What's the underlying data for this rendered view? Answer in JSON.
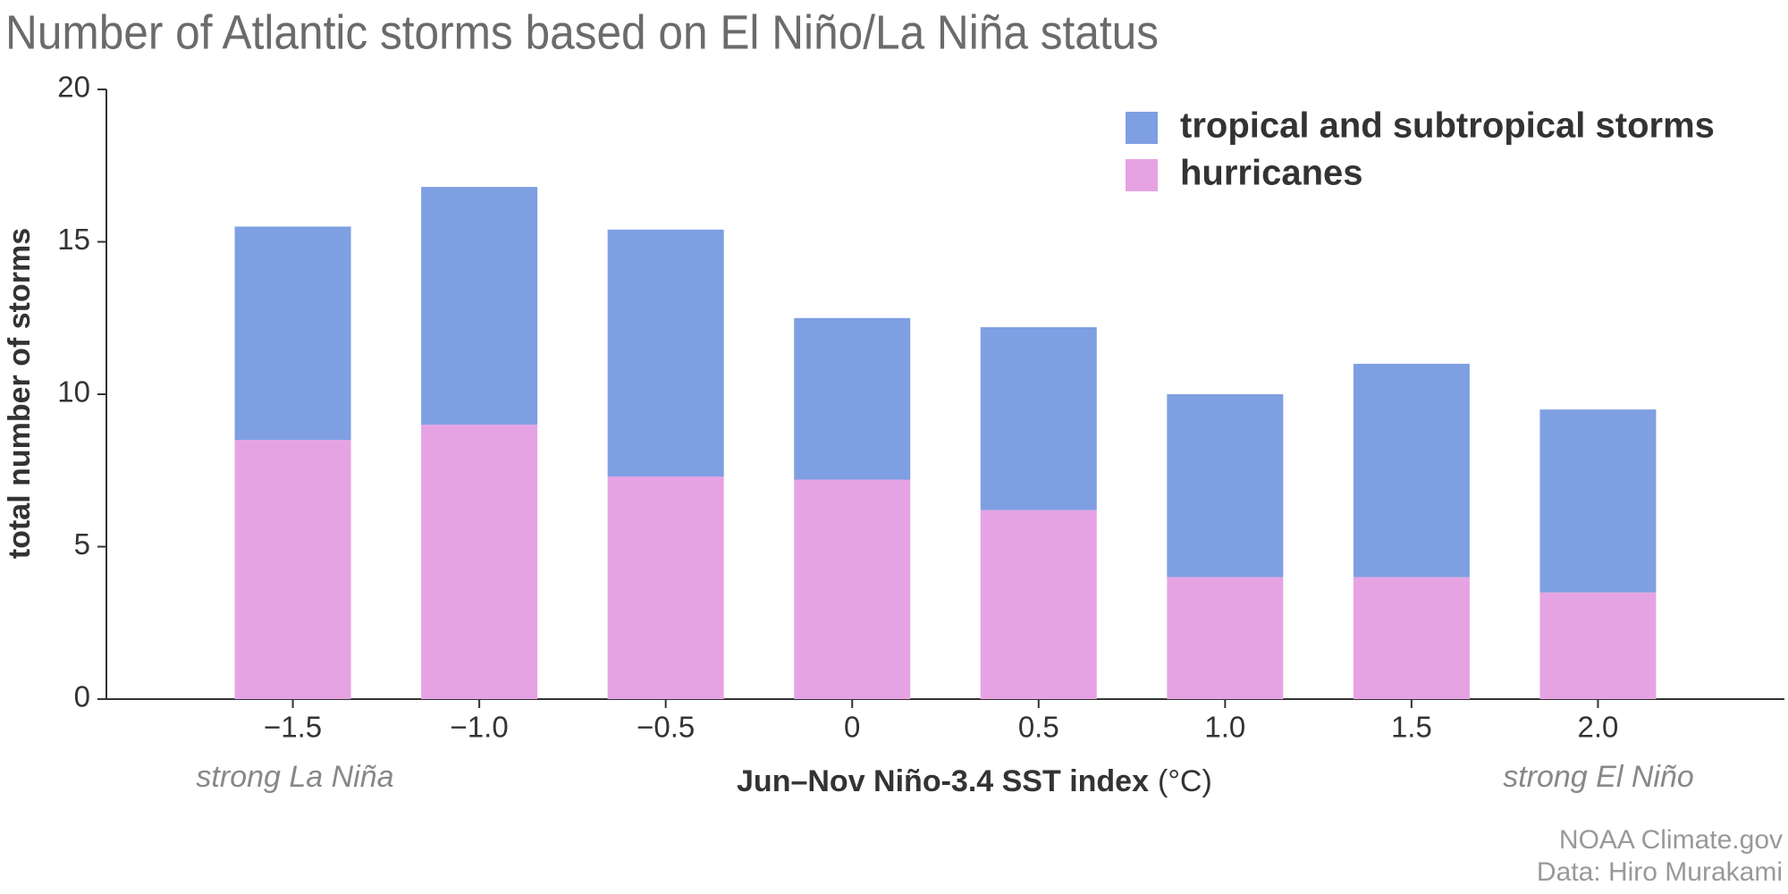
{
  "chart_data": {
    "type": "stacked-bar",
    "title": "Number of Atlantic storms based on El Niño/La Niña status",
    "y_label": "total number of storms",
    "x_label": "Jun–Nov Niño-3.4 SST index",
    "x_label_unit": "(°C)",
    "annotations": [
      "strong La Niña",
      "strong El Niño"
    ],
    "credits": [
      "NOAA Climate.gov",
      "Data: Hiro Murakami"
    ],
    "categories": [
      "−1.5",
      "−1.0",
      "−0.5",
      "0",
      "0.5",
      "1.0",
      "1.5",
      "2.0"
    ],
    "series": [
      {
        "name": "tropical and subtropical storms",
        "color": "#7f9fe3",
        "values": [
          7.0,
          7.8,
          8.1,
          5.3,
          6.0,
          6.0,
          7.0,
          6.0
        ]
      },
      {
        "name": "hurricanes",
        "color": "#e6a3e3",
        "values": [
          8.5,
          9.0,
          7.3,
          7.2,
          6.2,
          4.0,
          4.0,
          3.5
        ]
      }
    ],
    "ylim": [
      0,
      20
    ],
    "yticks": [
      0,
      5,
      10,
      15,
      20
    ],
    "grid": false,
    "legend": "top-right"
  }
}
